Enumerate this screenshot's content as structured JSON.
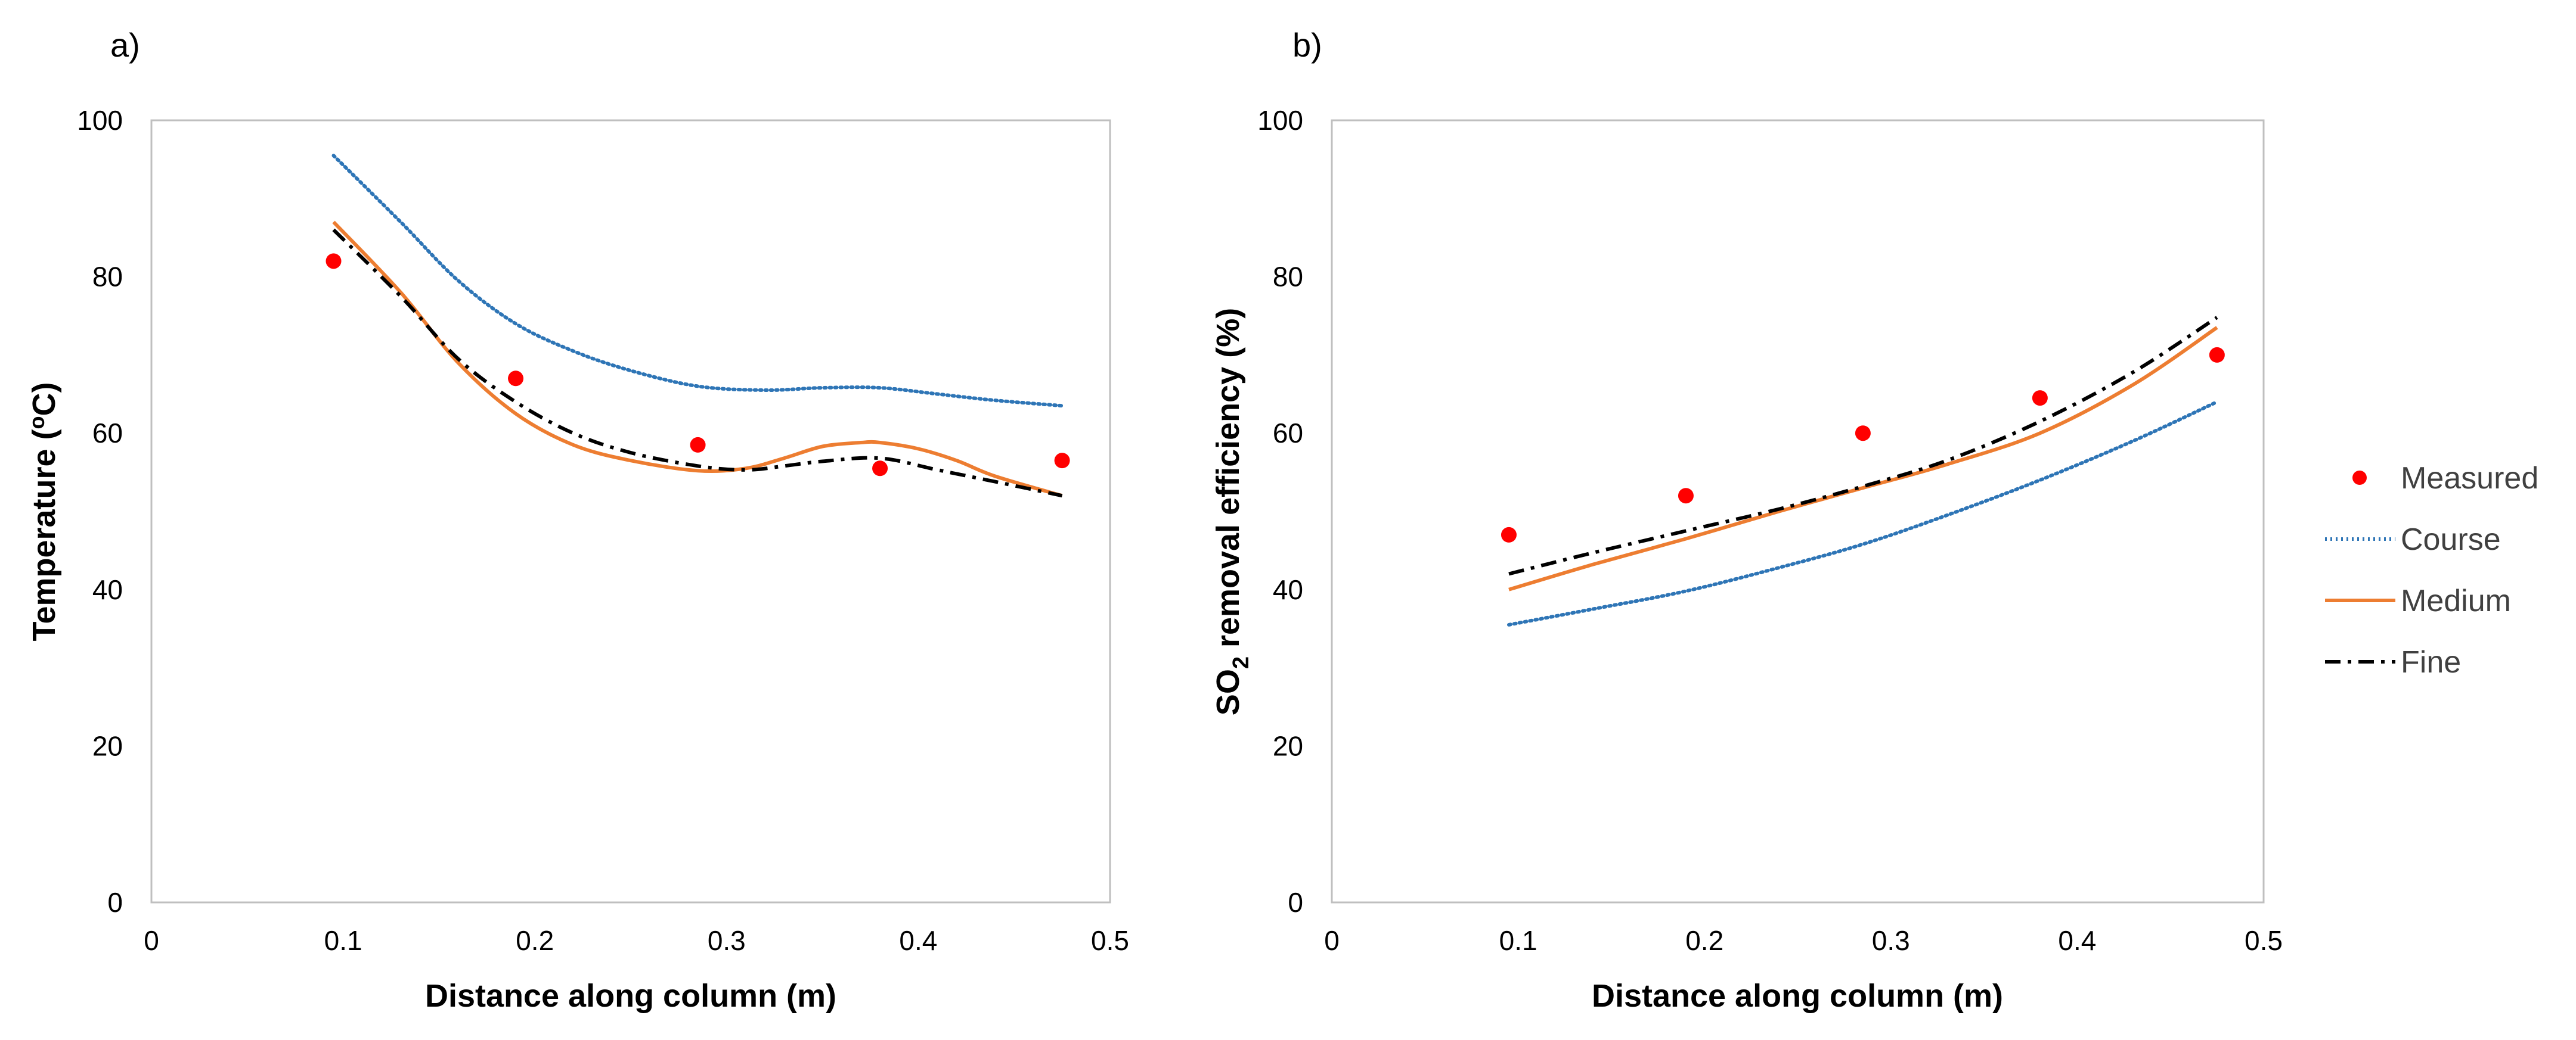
{
  "chart_data": [
    {
      "type": "line",
      "panel_label": "a)",
      "xlabel": "Distance along column (m)",
      "ylabel": "Temperature (°C)",
      "ylabel_parts": {
        "main": "Temperature (",
        "sup": "o",
        "unit": "C)"
      },
      "xlim": [
        0,
        0.5
      ],
      "ylim": [
        0,
        100
      ],
      "x_ticks": [
        "0",
        "0.1",
        "0.2",
        "0.3",
        "0.4",
        "0.5"
      ],
      "y_ticks": [
        "0",
        "20",
        "40",
        "60",
        "80",
        "100"
      ],
      "series": [
        {
          "name": "Measured",
          "style": "marker",
          "color": "#ff0000",
          "x": [
            0.095,
            0.19,
            0.285,
            0.38,
            0.475
          ],
          "values": [
            82,
            67,
            58.5,
            55.5,
            56.5
          ]
        },
        {
          "name": "Course",
          "style": "dotted",
          "color": "#2e75b6",
          "x": [
            0.095,
            0.13,
            0.16,
            0.19,
            0.22,
            0.25,
            0.285,
            0.32,
            0.35,
            0.38,
            0.41,
            0.44,
            0.475
          ],
          "values": [
            95.5,
            87,
            79.5,
            74,
            70.5,
            68,
            66,
            65.5,
            65.8,
            65.8,
            65,
            64.2,
            63.5
          ]
        },
        {
          "name": "Medium",
          "style": "solid",
          "color": "#ed7d31",
          "x": [
            0.095,
            0.13,
            0.16,
            0.19,
            0.22,
            0.25,
            0.285,
            0.31,
            0.33,
            0.35,
            0.37,
            0.38,
            0.4,
            0.42,
            0.44,
            0.475
          ],
          "values": [
            87,
            78,
            69,
            62.5,
            58.5,
            56.5,
            55.2,
            55.5,
            56.8,
            58.3,
            58.8,
            58.8,
            58,
            56.5,
            54.5,
            52
          ]
        },
        {
          "name": "Fine",
          "style": "dashdot",
          "color": "#000000",
          "x": [
            0.095,
            0.13,
            0.16,
            0.19,
            0.22,
            0.25,
            0.285,
            0.31,
            0.33,
            0.35,
            0.38,
            0.41,
            0.44,
            0.475
          ],
          "values": [
            86,
            77.5,
            69.5,
            64,
            60,
            57.5,
            55.8,
            55.3,
            55.8,
            56.4,
            56.8,
            55.3,
            53.8,
            52
          ]
        }
      ]
    },
    {
      "type": "line",
      "panel_label": "b)",
      "xlabel": "Distance along column (m)",
      "ylabel": "SO2 removal efficiency (%)",
      "ylabel_parts": {
        "main": "SO",
        "sub": "2",
        "rest": " removal efficiency (%)"
      },
      "xlim": [
        0,
        0.5
      ],
      "ylim": [
        0,
        100
      ],
      "x_ticks": [
        "0",
        "0.1",
        "0.2",
        "0.3",
        "0.4",
        "0.5"
      ],
      "y_ticks": [
        "0",
        "20",
        "40",
        "60",
        "80",
        "100"
      ],
      "series": [
        {
          "name": "Measured",
          "style": "marker",
          "color": "#ff0000",
          "x": [
            0.095,
            0.19,
            0.285,
            0.38,
            0.475
          ],
          "values": [
            47,
            52,
            60,
            64.5,
            70
          ]
        },
        {
          "name": "Course",
          "style": "dotted",
          "color": "#2e75b6",
          "x": [
            0.095,
            0.14,
            0.19,
            0.24,
            0.285,
            0.33,
            0.38,
            0.43,
            0.475
          ],
          "values": [
            35.5,
            37.5,
            39.8,
            42.8,
            45.8,
            49.5,
            54,
            59,
            64
          ]
        },
        {
          "name": "Medium",
          "style": "solid",
          "color": "#ed7d31",
          "x": [
            0.095,
            0.14,
            0.19,
            0.24,
            0.285,
            0.33,
            0.38,
            0.43,
            0.475
          ],
          "values": [
            40,
            43.2,
            46.5,
            50,
            53,
            56,
            60,
            66.2,
            73.5
          ]
        },
        {
          "name": "Fine",
          "style": "dashdot",
          "color": "#000000",
          "x": [
            0.095,
            0.14,
            0.19,
            0.24,
            0.285,
            0.33,
            0.38,
            0.43,
            0.475
          ],
          "values": [
            42,
            44.7,
            47.5,
            50.3,
            53.2,
            56.5,
            61.5,
            67.8,
            74.8
          ]
        }
      ]
    }
  ],
  "legend": {
    "placement": "right",
    "entries": [
      {
        "name": "Measured",
        "style": "marker",
        "color": "#ff0000"
      },
      {
        "name": "Course",
        "style": "dotted",
        "color": "#2e75b6"
      },
      {
        "name": "Medium",
        "style": "solid",
        "color": "#ed7d31"
      },
      {
        "name": "Fine",
        "style": "dashdot",
        "color": "#000000"
      }
    ]
  }
}
